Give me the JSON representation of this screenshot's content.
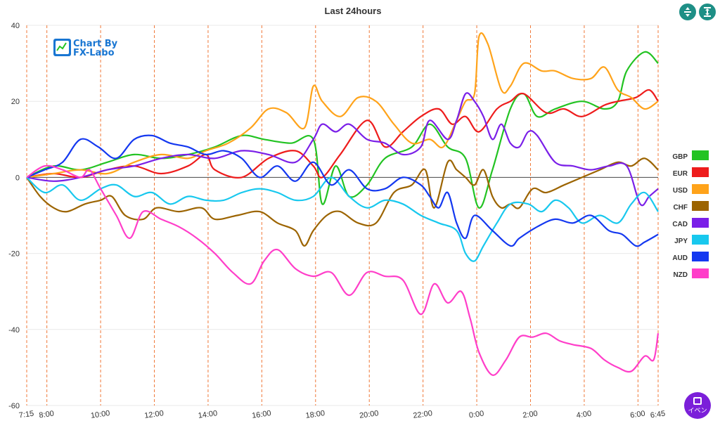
{
  "chart_data": {
    "type": "line",
    "title": "Last 24hours",
    "ylim": [
      -60,
      40
    ],
    "yticks": [
      40,
      20,
      0,
      -20,
      -40,
      -60
    ],
    "xlim": [
      0,
      1410
    ],
    "xticks": [
      {
        "label": "7:15",
        "x": 0
      },
      {
        "label": "8:00",
        "x": 45
      },
      {
        "label": "10:00",
        "x": 165
      },
      {
        "label": "12:00",
        "x": 285
      },
      {
        "label": "14:00",
        "x": 405
      },
      {
        "label": "16:00",
        "x": 525
      },
      {
        "label": "18:00",
        "x": 645
      },
      {
        "label": "20:00",
        "x": 765
      },
      {
        "label": "22:00",
        "x": 885
      },
      {
        "label": "0:00",
        "x": 1005
      },
      {
        "label": "2:00",
        "x": 1125
      },
      {
        "label": "4:00",
        "x": 1245
      },
      {
        "label": "6:00",
        "x": 1365
      },
      {
        "label": "6:45",
        "x": 1410
      }
    ],
    "vlines": [
      0,
      45,
      165,
      285,
      405,
      525,
      645,
      765,
      885,
      1005,
      1125,
      1245,
      1365,
      1410
    ],
    "series": [
      {
        "name": "GBP",
        "color": "#22c322",
        "x": [
          0,
          60,
          120,
          180,
          240,
          300,
          360,
          420,
          480,
          530,
          590,
          640,
          660,
          690,
          720,
          760,
          800,
          860,
          900,
          940,
          980,
          1010,
          1040,
          1080,
          1110,
          1140,
          1180,
          1240,
          1290,
          1320,
          1340,
          1380,
          1410
        ],
        "y": [
          0,
          3,
          2,
          4,
          6,
          5,
          6,
          8,
          11,
          10,
          9,
          10,
          -7,
          3,
          -5,
          -2,
          5,
          8,
          14,
          8,
          5,
          -8,
          2,
          18,
          22,
          16,
          18,
          20,
          18,
          20,
          28,
          33,
          30
        ]
      },
      {
        "name": "EUR",
        "color": "#ee1c1c",
        "x": [
          0,
          60,
          120,
          180,
          240,
          300,
          360,
          400,
          420,
          480,
          540,
          600,
          640,
          660,
          700,
          760,
          800,
          840,
          880,
          920,
          950,
          980,
          1010,
          1050,
          1080,
          1110,
          1160,
          1200,
          1240,
          1290,
          1320,
          1360,
          1390,
          1410
        ],
        "y": [
          0,
          1,
          0,
          2,
          3,
          1,
          3,
          6,
          2,
          0,
          5,
          7,
          3,
          0,
          6,
          15,
          8,
          12,
          16,
          18,
          14,
          16,
          12,
          18,
          20,
          22,
          17,
          18,
          16,
          19,
          20,
          21,
          23,
          20
        ]
      },
      {
        "name": "USD",
        "color": "#ffa31a",
        "x": [
          0,
          60,
          120,
          180,
          240,
          300,
          360,
          400,
          450,
          500,
          540,
          580,
          620,
          640,
          660,
          700,
          740,
          780,
          820,
          860,
          900,
          930,
          960,
          980,
          1000,
          1010,
          1030,
          1060,
          1080,
          1110,
          1150,
          1180,
          1220,
          1260,
          1290,
          1320,
          1350,
          1380,
          1410
        ],
        "y": [
          0,
          1,
          2,
          1,
          4,
          6,
          5,
          7,
          9,
          13,
          18,
          17,
          13,
          24,
          20,
          16,
          21,
          20,
          14,
          9,
          10,
          8,
          15,
          20,
          22,
          37,
          35,
          23,
          24,
          30,
          28,
          28,
          26,
          26,
          29,
          23,
          21,
          18,
          20
        ]
      },
      {
        "name": "CHF",
        "color": "#9c6400",
        "x": [
          0,
          30,
          60,
          90,
          130,
          165,
          190,
          220,
          260,
          290,
          340,
          390,
          420,
          470,
          520,
          560,
          600,
          620,
          640,
          670,
          700,
          740,
          780,
          820,
          860,
          890,
          910,
          940,
          960,
          980,
          1000,
          1020,
          1040,
          1060,
          1080,
          1100,
          1130,
          1160,
          1200,
          1240,
          1280,
          1320,
          1350,
          1380,
          1410
        ],
        "y": [
          0,
          -5,
          -8,
          -9,
          -7,
          -6,
          -5,
          -10,
          -11,
          -8,
          -9,
          -8,
          -11,
          -10,
          -9,
          -12,
          -14,
          -18,
          -14,
          -10,
          -9,
          -12,
          -12,
          -4,
          -2,
          2,
          -8,
          4,
          2,
          0,
          -2,
          2,
          -5,
          -8,
          -7,
          -8,
          -3,
          -4,
          -2,
          0,
          2,
          4,
          3,
          5,
          2
        ]
      },
      {
        "name": "CAD",
        "color": "#7a1fe8",
        "x": [
          0,
          60,
          120,
          180,
          240,
          300,
          360,
          420,
          480,
          540,
          600,
          640,
          660,
          690,
          720,
          760,
          800,
          840,
          880,
          900,
          940,
          960,
          980,
          1000,
          1020,
          1040,
          1060,
          1080,
          1100,
          1120,
          1140,
          1180,
          1220,
          1260,
          1300,
          1340,
          1370,
          1390,
          1410
        ],
        "y": [
          0,
          -1,
          0,
          2,
          3,
          5,
          6,
          5,
          7,
          6,
          4,
          10,
          14,
          12,
          14,
          10,
          9,
          6,
          8,
          15,
          10,
          15,
          22,
          20,
          16,
          10,
          14,
          9,
          8,
          12,
          11,
          4,
          3,
          2,
          3,
          3,
          -7,
          -5,
          -3
        ]
      },
      {
        "name": "JPY",
        "color": "#18c8ee",
        "x": [
          0,
          40,
          80,
          120,
          165,
          200,
          240,
          280,
          320,
          360,
          400,
          440,
          480,
          520,
          560,
          600,
          640,
          680,
          720,
          760,
          800,
          840,
          880,
          920,
          960,
          980,
          1000,
          1020,
          1050,
          1080,
          1120,
          1150,
          1180,
          1210,
          1240,
          1280,
          1320,
          1350,
          1380,
          1410
        ],
        "y": [
          0,
          -4,
          -2,
          -6,
          -3,
          -2,
          -5,
          -4,
          -7,
          -5,
          -6,
          -6,
          -4,
          -3,
          -4,
          -6,
          -5,
          0,
          -5,
          -8,
          -6,
          -7,
          -10,
          -12,
          -14,
          -20,
          -22,
          -18,
          -12,
          -7,
          -7,
          -9,
          -6,
          -8,
          -12,
          -10,
          -12,
          -7,
          -4,
          -9
        ]
      },
      {
        "name": "AUD",
        "color": "#1438f0",
        "x": [
          0,
          40,
          80,
          120,
          160,
          200,
          240,
          280,
          320,
          360,
          400,
          440,
          480,
          520,
          560,
          600,
          640,
          680,
          720,
          760,
          800,
          840,
          880,
          900,
          920,
          940,
          960,
          980,
          1000,
          1040,
          1080,
          1100,
          1140,
          1180,
          1220,
          1260,
          1300,
          1330,
          1360,
          1380,
          1410
        ],
        "y": [
          0,
          2,
          4,
          10,
          8,
          5,
          10,
          11,
          9,
          8,
          6,
          7,
          5,
          0,
          3,
          -1,
          4,
          -2,
          2,
          -3,
          -3,
          0,
          -2,
          -5,
          -8,
          -4,
          -12,
          -16,
          -10,
          -14,
          -18,
          -16,
          -13,
          -11,
          -12,
          -10,
          -14,
          -15,
          -18,
          -17,
          -15
        ]
      },
      {
        "name": "NZD",
        "color": "#ff3ec9",
        "x": [
          0,
          40,
          80,
          120,
          140,
          165,
          200,
          230,
          260,
          300,
          340,
          380,
          420,
          460,
          500,
          530,
          560,
          600,
          640,
          680,
          720,
          760,
          800,
          840,
          880,
          910,
          940,
          970,
          990,
          1010,
          1040,
          1070,
          1100,
          1130,
          1160,
          1190,
          1220,
          1260,
          1290,
          1320,
          1350,
          1380,
          1400,
          1410
        ],
        "y": [
          0,
          3,
          2,
          0,
          2,
          -3,
          -10,
          -16,
          -9,
          -11,
          -13,
          -16,
          -20,
          -25,
          -28,
          -22,
          -19,
          -24,
          -26,
          -25,
          -31,
          -25,
          -26,
          -27,
          -36,
          -28,
          -33,
          -30,
          -37,
          -46,
          -52,
          -48,
          -42,
          -42,
          -41,
          -43,
          -44,
          -45,
          -48,
          -50,
          -51,
          -47,
          -48,
          -41
        ]
      }
    ]
  },
  "logo": {
    "line1": "Chart By",
    "line2": "FX-Labo"
  },
  "event_button": {
    "label": "イベン"
  }
}
